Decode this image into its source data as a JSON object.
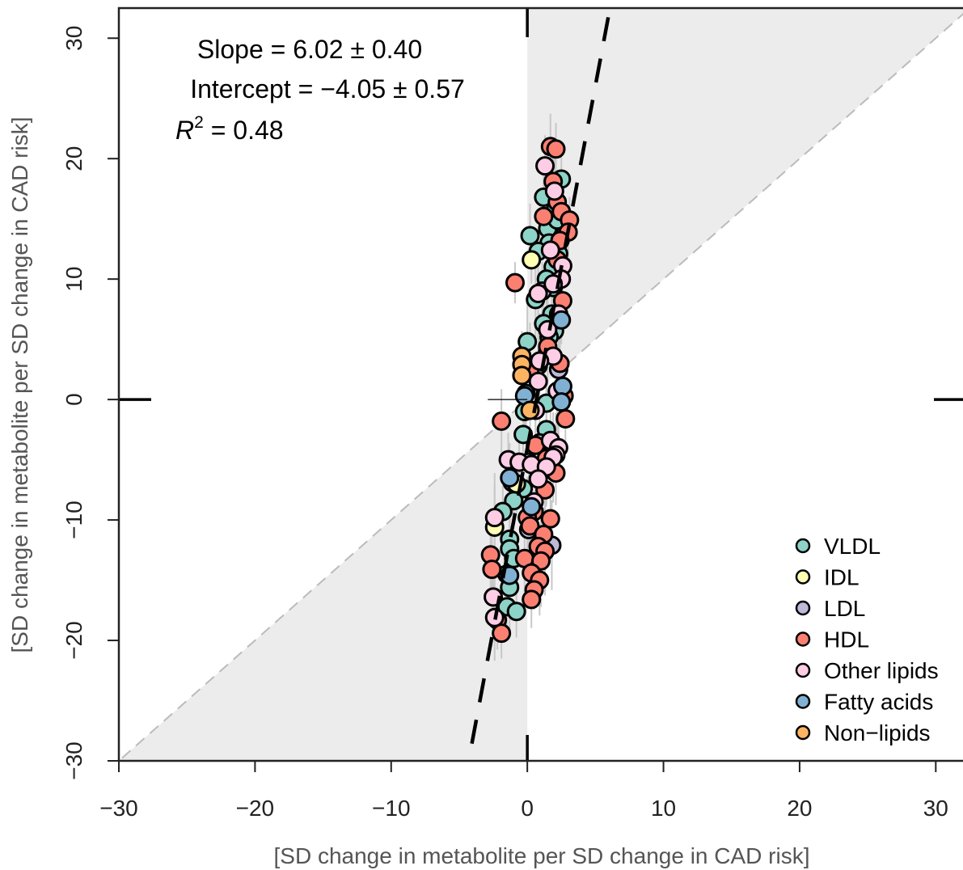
{
  "chart_data": {
    "type": "scatter",
    "title": "",
    "xlabel": "[SD change in metabolite per SD change in CAD risk]",
    "ylabel": "[SD change in metabolite per SD change in CAD risk]",
    "xlim": [
      -30,
      32
    ],
    "ylim": [
      -30,
      32.5
    ],
    "xticks": [
      -30,
      -20,
      -10,
      0,
      10,
      20,
      30
    ],
    "yticks": [
      -30,
      -20,
      -10,
      0,
      10,
      20,
      30
    ],
    "xtick_labels": [
      "−30",
      "−20",
      "−10",
      "0",
      "10",
      "20",
      "30"
    ],
    "ytick_labels": [
      "−30",
      "−20",
      "−10",
      "0",
      "10",
      "20",
      "30"
    ],
    "grid": false,
    "legend_position": "bottom-right",
    "annotations": {
      "slope": "Slope = 6.02 ± 0.40",
      "intercept": "Intercept = −4.05 ±  0.57",
      "r2_symbol": "R",
      "r2_exponent": "2",
      "r2_value": " = 0.48"
    },
    "fit_line": {
      "slope": 6.02,
      "intercept": -4.05,
      "style": "dashed",
      "color": "#000000"
    },
    "identity_line": {
      "slope": 1,
      "intercept": 0,
      "style": "dashed",
      "color": "#bbbbbb"
    },
    "shaded_region": "area between x = 0 and the line y = x",
    "shade_color": "#ececec",
    "errorbar_color": "#c8c8c8",
    "series": [
      {
        "name": "VLDL",
        "color": "#8dd3c7",
        "points": [
          [
            1.2,
            16.8
          ],
          [
            2.1,
            15.9
          ],
          [
            1.8,
            14.6
          ],
          [
            1.5,
            14.2
          ],
          [
            0.2,
            13.6
          ],
          [
            1.6,
            13.0
          ],
          [
            0.8,
            12.3
          ],
          [
            2.3,
            12.1
          ],
          [
            1.9,
            11.0
          ],
          [
            1.4,
            10.0
          ],
          [
            1.9,
            9.3
          ],
          [
            0.6,
            8.3
          ],
          [
            1.8,
            7.1
          ],
          [
            1.2,
            6.3
          ],
          [
            2.0,
            5.7
          ],
          [
            1.6,
            5.2
          ],
          [
            0.0,
            4.8
          ],
          [
            1.5,
            4.0
          ],
          [
            0.8,
            2.8
          ],
          [
            -0.1,
            0.5
          ],
          [
            1.4,
            -0.3
          ],
          [
            -0.2,
            -1.0
          ],
          [
            1.4,
            -2.5
          ],
          [
            -0.3,
            -2.9
          ],
          [
            0.1,
            -5.2
          ],
          [
            -1.1,
            -6.9
          ],
          [
            -0.3,
            -7.4
          ],
          [
            -1.0,
            -8.4
          ],
          [
            -1.8,
            -9.3
          ],
          [
            -1.3,
            -11.6
          ],
          [
            -1.3,
            -12.4
          ],
          [
            -1.0,
            -13.2
          ],
          [
            -1.5,
            -14.5
          ],
          [
            -1.3,
            -15.6
          ],
          [
            -1.5,
            -17.2
          ],
          [
            -0.8,
            -17.6
          ],
          [
            2.5,
            18.3
          ],
          [
            2.2,
            14.9
          ]
        ]
      },
      {
        "name": "IDL",
        "color": "#ffffb3",
        "points": [
          [
            0.3,
            11.6
          ],
          [
            -2.4,
            -10.6
          ],
          [
            -0.8,
            -7.0
          ]
        ]
      },
      {
        "name": "LDL",
        "color": "#bebada",
        "points": [
          [
            1.1,
            9.0
          ],
          [
            2.3,
            2.5
          ],
          [
            0.9,
            -3.6
          ],
          [
            0.1,
            -10.8
          ],
          [
            1.8,
            -12.1
          ]
        ]
      },
      {
        "name": "HDL",
        "color": "#fb8072",
        "points": [
          [
            1.7,
            21.0
          ],
          [
            2.1,
            20.8
          ],
          [
            1.9,
            18.1
          ],
          [
            2.2,
            16.4
          ],
          [
            2.5,
            15.6
          ],
          [
            1.2,
            15.2
          ],
          [
            3.1,
            14.9
          ],
          [
            3.0,
            13.9
          ],
          [
            2.4,
            13.2
          ],
          [
            2.2,
            11.6
          ],
          [
            -0.9,
            9.7
          ],
          [
            2.6,
            8.2
          ],
          [
            1.5,
            4.4
          ],
          [
            2.4,
            3.0
          ],
          [
            0.2,
            2.5
          ],
          [
            2.7,
            0.3
          ],
          [
            -1.9,
            -1.8
          ],
          [
            2.8,
            -1.6
          ],
          [
            0.6,
            -3.8
          ],
          [
            1.4,
            -4.9
          ],
          [
            2.1,
            -6.1
          ],
          [
            1.3,
            -7.5
          ],
          [
            0.5,
            -9.3
          ],
          [
            1.7,
            -9.9
          ],
          [
            0.0,
            -9.8
          ],
          [
            0.2,
            -10.5
          ],
          [
            1.2,
            -11.2
          ],
          [
            0.8,
            -12.2
          ],
          [
            1.3,
            -12.6
          ],
          [
            -0.2,
            -13.2
          ],
          [
            1.0,
            -13.4
          ],
          [
            -2.7,
            -12.9
          ],
          [
            -2.6,
            -14.1
          ],
          [
            0.3,
            -14.4
          ],
          [
            0.9,
            -15.0
          ],
          [
            0.5,
            -15.8
          ],
          [
            0.3,
            -16.6
          ],
          [
            -2.2,
            -18.3
          ],
          [
            -1.9,
            -19.4
          ]
        ]
      },
      {
        "name": "Other lipids",
        "color": "#fccde5",
        "points": [
          [
            1.3,
            19.4
          ],
          [
            2.0,
            17.3
          ],
          [
            1.7,
            12.4
          ],
          [
            2.6,
            11.1
          ],
          [
            2.5,
            10.0
          ],
          [
            1.9,
            9.6
          ],
          [
            0.8,
            8.8
          ],
          [
            2.3,
            7.1
          ],
          [
            1.5,
            5.8
          ],
          [
            1.9,
            3.6
          ],
          [
            0.9,
            3.2
          ],
          [
            0.8,
            1.5
          ],
          [
            2.2,
            0.7
          ],
          [
            0.6,
            -0.9
          ],
          [
            1.7,
            -3.4
          ],
          [
            2.3,
            -4.0
          ],
          [
            2.1,
            -4.6
          ],
          [
            1.9,
            -4.8
          ],
          [
            -1.4,
            -5.0
          ],
          [
            -0.6,
            -5.2
          ],
          [
            0.3,
            -5.4
          ],
          [
            1.4,
            -5.6
          ],
          [
            0.8,
            -6.6
          ],
          [
            0.5,
            -8.5
          ],
          [
            -2.4,
            -9.8
          ],
          [
            -2.5,
            -16.4
          ],
          [
            -2.4,
            -18.1
          ]
        ]
      },
      {
        "name": "Fatty acids",
        "color": "#80b1d3",
        "points": [
          [
            2.5,
            6.6
          ],
          [
            2.6,
            1.1
          ],
          [
            -0.2,
            0.3
          ],
          [
            2.5,
            -0.2
          ],
          [
            -1.3,
            -6.5
          ],
          [
            0.3,
            -8.9
          ],
          [
            -1.3,
            -14.6
          ]
        ]
      },
      {
        "name": "Non−lipids",
        "color": "#fdb462",
        "points": [
          [
            -0.4,
            3.6
          ],
          [
            -0.4,
            2.9
          ],
          [
            -0.4,
            2.0
          ],
          [
            0.2,
            -0.9
          ]
        ]
      }
    ]
  }
}
